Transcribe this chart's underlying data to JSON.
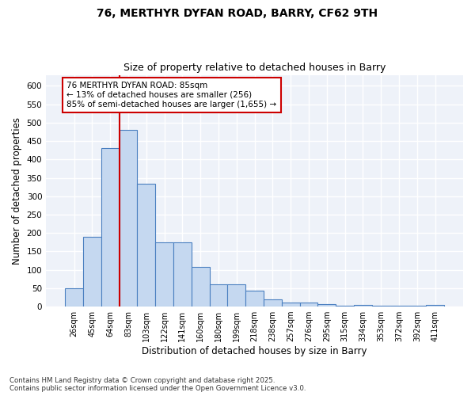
{
  "title1": "76, MERTHYR DYFAN ROAD, BARRY, CF62 9TH",
  "title2": "Size of property relative to detached houses in Barry",
  "xlabel": "Distribution of detached houses by size in Barry",
  "ylabel": "Number of detached properties",
  "categories": [
    "26sqm",
    "45sqm",
    "64sqm",
    "83sqm",
    "103sqm",
    "122sqm",
    "141sqm",
    "160sqm",
    "180sqm",
    "199sqm",
    "218sqm",
    "238sqm",
    "257sqm",
    "276sqm",
    "295sqm",
    "315sqm",
    "334sqm",
    "353sqm",
    "372sqm",
    "392sqm",
    "411sqm"
  ],
  "values": [
    50,
    190,
    430,
    480,
    335,
    175,
    175,
    108,
    60,
    60,
    43,
    20,
    10,
    10,
    7,
    3,
    5,
    3,
    2,
    3,
    5
  ],
  "bar_color": "#c5d8f0",
  "bar_edge_color": "#4a7fc0",
  "vline_index": 3,
  "vline_color": "#cc0000",
  "annotation_text": "76 MERTHYR DYFAN ROAD: 85sqm\n← 13% of detached houses are smaller (256)\n85% of semi-detached houses are larger (1,655) →",
  "annotation_box_color": "#ffffff",
  "annotation_box_edge": "#cc0000",
  "ylim": [
    0,
    630
  ],
  "yticks": [
    0,
    50,
    100,
    150,
    200,
    250,
    300,
    350,
    400,
    450,
    500,
    550,
    600
  ],
  "bg_color": "#eef2f9",
  "grid_color": "#ffffff",
  "footer": "Contains HM Land Registry data © Crown copyright and database right 2025.\nContains public sector information licensed under the Open Government Licence v3.0.",
  "title_fontsize": 10,
  "subtitle_fontsize": 9,
  "tick_fontsize": 7,
  "label_fontsize": 8.5,
  "ann_fontsize": 7.5
}
